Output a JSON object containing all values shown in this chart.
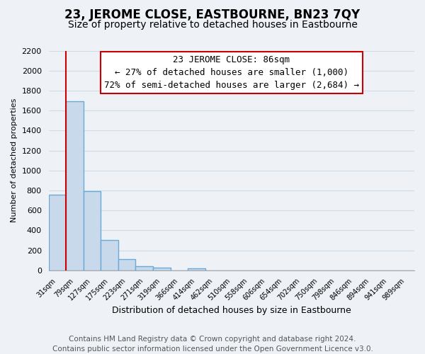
{
  "title": "23, JEROME CLOSE, EASTBOURNE, BN23 7QY",
  "subtitle": "Size of property relative to detached houses in Eastbourne",
  "xlabel": "Distribution of detached houses by size in Eastbourne",
  "ylabel": "Number of detached properties",
  "bin_labels": [
    "31sqm",
    "79sqm",
    "127sqm",
    "175sqm",
    "223sqm",
    "271sqm",
    "319sqm",
    "366sqm",
    "414sqm",
    "462sqm",
    "510sqm",
    "558sqm",
    "606sqm",
    "654sqm",
    "702sqm",
    "750sqm",
    "798sqm",
    "846sqm",
    "894sqm",
    "941sqm",
    "989sqm"
  ],
  "bin_values": [
    760,
    1690,
    790,
    300,
    110,
    40,
    28,
    0,
    20,
    0,
    0,
    0,
    0,
    0,
    0,
    0,
    0,
    0,
    0,
    0,
    0
  ],
  "bar_color": "#c9d9ec",
  "bar_edge_color": "#6aaad4",
  "bar_linewidth": 1.0,
  "red_line_x": 1,
  "red_line_color": "#cc0000",
  "ylim": [
    0,
    2200
  ],
  "yticks": [
    0,
    200,
    400,
    600,
    800,
    1000,
    1200,
    1400,
    1600,
    1800,
    2000,
    2200
  ],
  "grid_color": "#ccdde8",
  "annotation_line1": "23 JEROME CLOSE: 86sqm",
  "annotation_line2": "← 27% of detached houses are smaller (1,000)",
  "annotation_line3": "72% of semi-detached houses are larger (2,684) →",
  "footer_line1": "Contains HM Land Registry data © Crown copyright and database right 2024.",
  "footer_line2": "Contains public sector information licensed under the Open Government Licence v3.0.",
  "background_color": "#eef2f7",
  "plot_background_color": "#eef2f7",
  "title_fontsize": 12,
  "subtitle_fontsize": 10,
  "annotation_fontsize": 9,
  "footer_fontsize": 7.5,
  "ylabel_fontsize": 8,
  "xlabel_fontsize": 9
}
